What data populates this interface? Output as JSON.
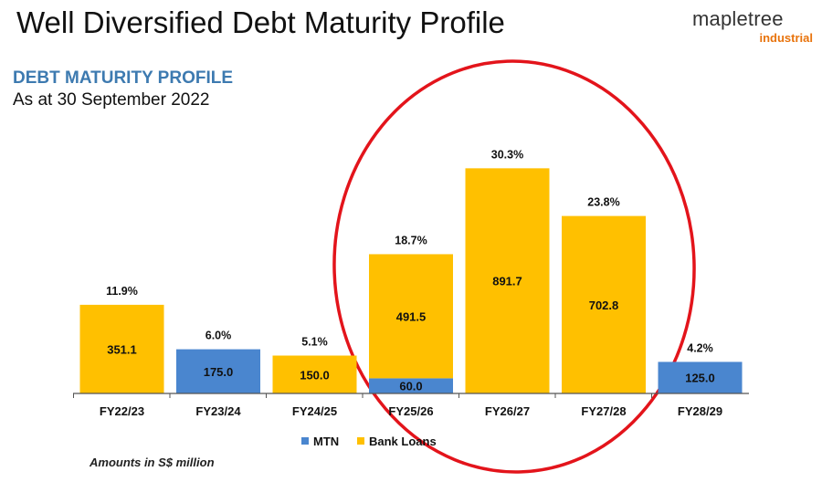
{
  "slide": {
    "title": "Well Diversified Debt Maturity Profile",
    "logo_text": "mapletree",
    "logo_subtext": "industrial",
    "section_heading": "DEBT MATURITY PROFILE",
    "subheading": "As at 30 September 2022",
    "footnote": "Amounts in S$ million"
  },
  "colors": {
    "mtn": "#4a86cf",
    "bank_loans": "#ffc000",
    "heading": "#3d7ab0",
    "logo_accent": "#e8730c",
    "highlight_circle": "#e3141b"
  },
  "chart_data": {
    "type": "bar",
    "stacked": true,
    "categories": [
      "FY22/23",
      "FY23/24",
      "FY24/25",
      "FY25/26",
      "FY26/27",
      "FY27/28",
      "FY28/29"
    ],
    "series": [
      {
        "name": "MTN",
        "values": [
          0,
          175.0,
          0,
          60.0,
          0,
          0,
          125.0
        ]
      },
      {
        "name": "Bank Loans",
        "values": [
          351.1,
          0,
          150.0,
          491.5,
          891.7,
          702.8,
          0
        ]
      }
    ],
    "segment_labels": [
      [
        "",
        "175.0",
        "",
        "60.0",
        "",
        "",
        "125.0"
      ],
      [
        "351.1",
        "",
        "150.0",
        "491.5",
        "891.7",
        "702.8",
        ""
      ]
    ],
    "percent_labels": [
      "11.9%",
      "6.0%",
      "5.1%",
      "18.7%",
      "30.3%",
      "23.8%",
      "4.2%"
    ],
    "ylim": [
      0,
      1000
    ],
    "grid": false,
    "legend_position": "bottom-center",
    "annotation": "red hand-drawn ellipse highlighting FY25/26 to FY27/28"
  }
}
